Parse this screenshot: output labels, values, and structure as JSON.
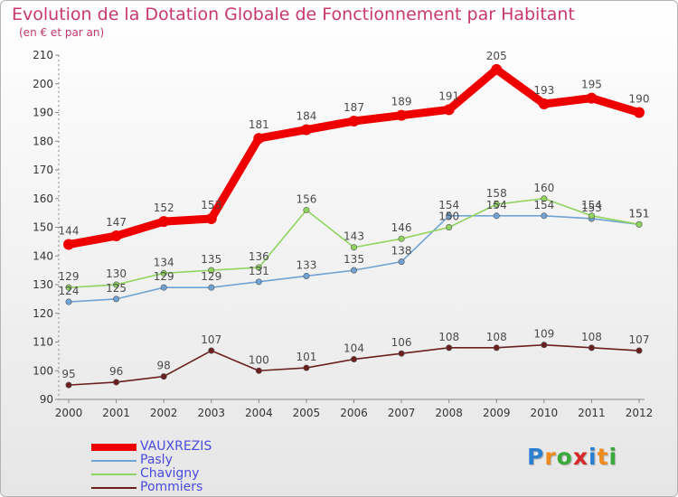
{
  "title": "Evolution de la Dotation Globale de Fonctionnement par Habitant",
  "subtitle": "(en € et par an)",
  "logo": {
    "text": "Proxiti",
    "letters": [
      "P",
      "r",
      "o",
      "x",
      "i",
      "t",
      "i"
    ],
    "colors": [
      "#2b7fd0",
      "#f08a1c",
      "#3aa83a",
      "#d62828",
      "#2b7fd0",
      "#f08a1c",
      "#3aa83a"
    ]
  },
  "chart_data": {
    "type": "line",
    "x": [
      "2000",
      "2001",
      "2002",
      "2003",
      "2004",
      "2005",
      "2006",
      "2007",
      "2008",
      "2009",
      "2010",
      "2011",
      "2012"
    ],
    "ylim": [
      90,
      210
    ],
    "yticks": [
      "90",
      "100",
      "110",
      "120",
      "130",
      "140",
      "150",
      "160",
      "170",
      "180",
      "190",
      "200",
      "210"
    ],
    "grid": false,
    "legend_position": "bottom-left",
    "series": [
      {
        "name": "VAUXREZIS",
        "values": [
          144,
          147,
          152,
          153,
          181,
          184,
          187,
          189,
          191,
          205,
          193,
          195,
          190
        ],
        "labels": [
          "144",
          "147",
          "152",
          "153",
          "181",
          "184",
          "187",
          "189",
          "191",
          "205",
          "193",
          "195",
          "190"
        ],
        "color": "#ee0000",
        "label_color": "#4a4a4a"
      },
      {
        "name": "Pasly",
        "values": [
          124,
          125,
          129,
          129,
          131,
          133,
          135,
          138,
          154,
          154,
          154,
          153,
          151
        ],
        "labels": [
          "124",
          "125",
          "129",
          "129",
          "131",
          "133",
          "135",
          "138",
          "154",
          "154",
          "154",
          "153",
          "151"
        ],
        "color": "#6fa3d3",
        "label_color": "#4a4a4a"
      },
      {
        "name": "Chavigny",
        "values": [
          129,
          130,
          134,
          135,
          136,
          156,
          143,
          146,
          150,
          158,
          160,
          154,
          151
        ],
        "labels": [
          "129",
          "130",
          "134",
          "135",
          "136",
          "156",
          "143",
          "146",
          "150",
          "158",
          "160",
          "154",
          "151"
        ],
        "color": "#8fd45f",
        "label_color": "#4a4a4a"
      },
      {
        "name": "Pommiers",
        "values": [
          95,
          96,
          98,
          107,
          100,
          101,
          104,
          106,
          108,
          108,
          109,
          108,
          107
        ],
        "labels": [
          "95",
          "96",
          "98",
          "107",
          "100",
          "101",
          "104",
          "106",
          "108",
          "108",
          "109",
          "108",
          "107"
        ],
        "color": "#6b1f1f",
        "label_color": "#4a4a4a"
      }
    ],
    "legend_label_color": "#4a4ae0"
  }
}
